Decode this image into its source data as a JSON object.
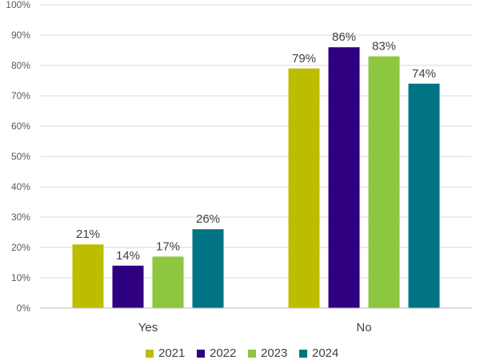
{
  "chart_data": {
    "type": "bar",
    "categories": [
      "Yes",
      "No"
    ],
    "series": [
      {
        "name": "2021",
        "color": "#bdbd00",
        "values": [
          21,
          79
        ]
      },
      {
        "name": "2022",
        "color": "#2e0081",
        "values": [
          14,
          86
        ]
      },
      {
        "name": "2023",
        "color": "#8dc63f",
        "values": [
          17,
          83
        ]
      },
      {
        "name": "2024",
        "color": "#007384",
        "values": [
          26,
          74
        ]
      }
    ],
    "value_labels": [
      [
        "21%",
        "79%"
      ],
      [
        "14%",
        "86%"
      ],
      [
        "17%",
        "83%"
      ],
      [
        "26%",
        "74%"
      ]
    ],
    "y_ticks": [
      0,
      10,
      20,
      30,
      40,
      50,
      60,
      70,
      80,
      90,
      100
    ],
    "y_tick_labels": [
      "0%",
      "10%",
      "20%",
      "30%",
      "40%",
      "50%",
      "60%",
      "70%",
      "80%",
      "90%",
      "100%"
    ],
    "ylim": [
      0,
      100
    ],
    "title": "",
    "xlabel": "",
    "ylabel": "",
    "grid": true,
    "legend_position": "bottom"
  }
}
